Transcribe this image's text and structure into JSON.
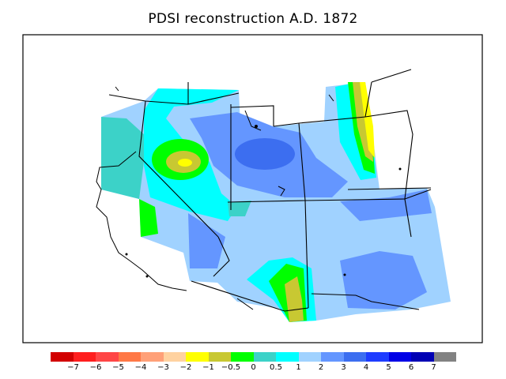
{
  "title": "PDSI reconstruction A.D. 1872",
  "legend": {
    "colors": [
      "#d20000",
      "#ff1e1e",
      "#ff4646",
      "#ff7846",
      "#ffa078",
      "#ffd2a0",
      "#ffff00",
      "#c8c832",
      "#00ff00",
      "#3cd2c8",
      "#00ffff",
      "#a0d2ff",
      "#6496ff",
      "#3c6ef0",
      "#1e3cff",
      "#0000e6",
      "#0000b4",
      "#828282"
    ],
    "labels": [
      "−7",
      "−6",
      "−5",
      "−4",
      "−3",
      "−2",
      "−1",
      "−0.5",
      "0",
      "0.5",
      "1",
      "2",
      "3",
      "4",
      "5",
      "6",
      "7"
    ]
  },
  "map_layers": {
    "base_color": "#a0d2ff",
    "regions": [
      "pacific-northwest-teal",
      "nevada-green-anomaly",
      "nevada-yellow-core",
      "great-basin-blue-low",
      "arizona-green-anomaly",
      "arizona-yellow-core",
      "northern-plains-yellow-band",
      "southwest-blue-low"
    ]
  }
}
